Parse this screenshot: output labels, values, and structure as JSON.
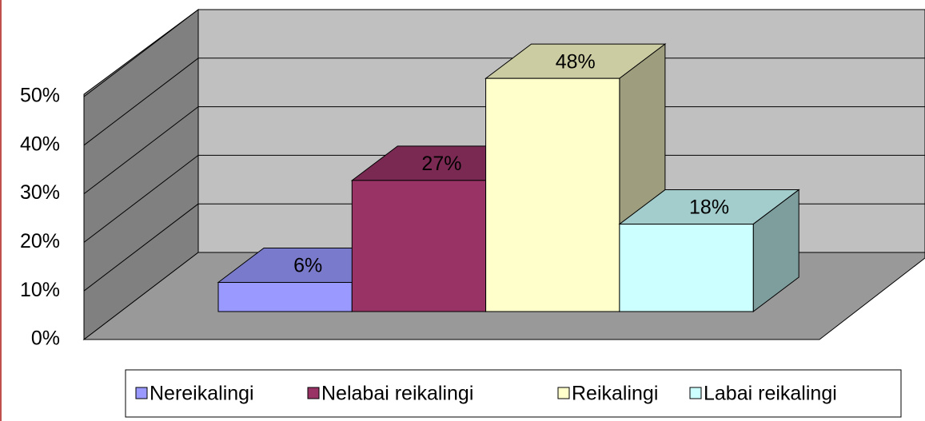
{
  "chart_data": {
    "type": "bar3d",
    "ylim": [
      0,
      50
    ],
    "yticks": [
      {
        "value": 0,
        "label": "0%"
      },
      {
        "value": 10,
        "label": "10%"
      },
      {
        "value": 20,
        "label": "20%"
      },
      {
        "value": 30,
        "label": "30%"
      },
      {
        "value": 40,
        "label": "40%"
      },
      {
        "value": 50,
        "label": "50%"
      }
    ],
    "grid": true,
    "legend": "bottom",
    "series": [
      {
        "name": "Nereikalingi",
        "color": "#9999ff",
        "values": [
          6
        ],
        "value_labels": [
          "6%"
        ]
      },
      {
        "name": "Nelabai reikalingi",
        "color": "#993366",
        "values": [
          27
        ],
        "value_labels": [
          "27%"
        ]
      },
      {
        "name": "Reikalingi",
        "color": "#ffffcc",
        "values": [
          48
        ],
        "value_labels": [
          "48%"
        ]
      },
      {
        "name": "Labai reikalingi",
        "color": "#ccffff",
        "values": [
          18
        ],
        "value_labels": [
          "18%"
        ]
      }
    ]
  }
}
